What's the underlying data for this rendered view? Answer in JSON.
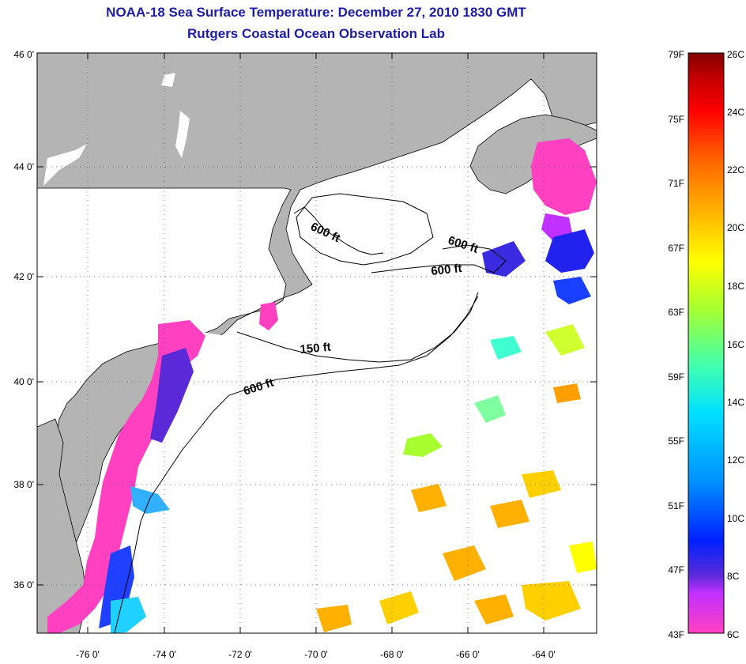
{
  "title": {
    "line1": "NOAA-18 Sea Surface Temperature:  December 27, 2010 1830 GMT",
    "line2": "Rutgers Coastal Ocean Observation Lab"
  },
  "map": {
    "lat_labels": [
      "46 0'",
      "44 0'",
      "42 0'",
      "40 0'",
      "38 0'",
      "36 0'"
    ],
    "lon_labels": [
      "-76 0'",
      "-74 0'",
      "-72 0'",
      "-70 0'",
      "-68 0'",
      "-66 0'",
      "-64 0'"
    ],
    "depth_labels": {
      "gom_600": "600 ft",
      "ne_channel_600": "600 ft",
      "georges_600": "600 ft",
      "shelf_150": "150 ft",
      "slope_600": "600 ft"
    },
    "colors": {
      "land": "#b4b4b4",
      "water_no_data": "#ffffff",
      "coastline": "#000000"
    }
  },
  "colorbar": {
    "f_labels": [
      "79F",
      "75F",
      "71F",
      "67F",
      "63F",
      "59F",
      "55F",
      "51F",
      "47F",
      "43F"
    ],
    "c_labels": [
      "26C",
      "24C",
      "22C",
      "20C",
      "18C",
      "16C",
      "14C",
      "12C",
      "10C",
      "8C",
      "6C"
    ],
    "gradient_stops": [
      "#ff40c0",
      "#c030ff",
      "#5a2ad8",
      "#0020ff",
      "#0090ff",
      "#00e0ff",
      "#40ffb0",
      "#a8ff30",
      "#ffff00",
      "#ffb000",
      "#ff6000",
      "#ff0000",
      "#c00000",
      "#800000"
    ]
  }
}
